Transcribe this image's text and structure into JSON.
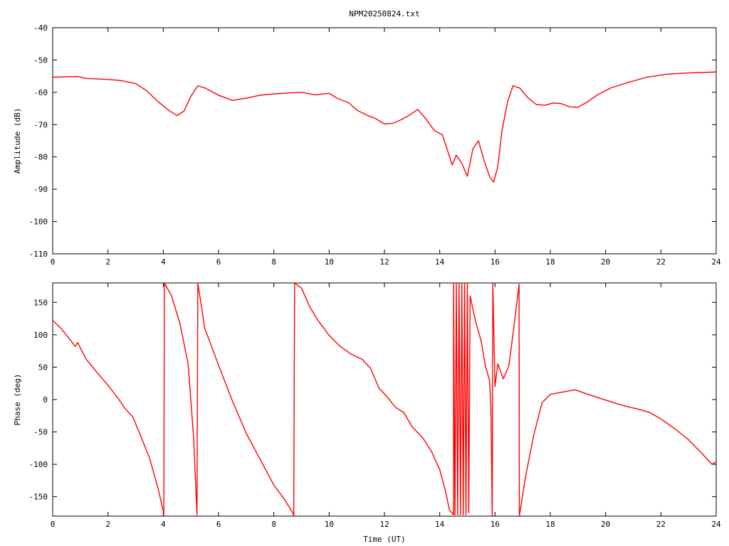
{
  "chart_data": [
    {
      "type": "line",
      "title": "NPM20250824.txt",
      "xlabel": "",
      "ylabel": "Amplitude (dB)",
      "xlim": [
        0,
        24
      ],
      "ylim": [
        -110,
        -40
      ],
      "xticks": [
        "0",
        "2",
        "4",
        "6",
        "8",
        "10",
        "12",
        "14",
        "16",
        "18",
        "20",
        "22",
        "24"
      ],
      "yticks": [
        "-40",
        "-50",
        "-60",
        "-70",
        "-80",
        "-90",
        "-100",
        "-110"
      ],
      "grid": false,
      "line_color": "#ff0000",
      "series": [
        {
          "points": [
            [
              0.0,
              -55.3
            ],
            [
              0.5,
              -55.2
            ],
            [
              0.9,
              -55.1
            ],
            [
              1.2,
              -55.7
            ],
            [
              1.5,
              -55.8
            ],
            [
              2.0,
              -56.0
            ],
            [
              2.5,
              -56.4
            ],
            [
              3.0,
              -57.3
            ],
            [
              3.4,
              -59.5
            ],
            [
              3.8,
              -62.8
            ],
            [
              4.2,
              -65.6
            ],
            [
              4.5,
              -67.2
            ],
            [
              4.75,
              -65.8
            ],
            [
              5.0,
              -61.2
            ],
            [
              5.25,
              -58.0
            ],
            [
              5.5,
              -58.6
            ],
            [
              6.0,
              -60.9
            ],
            [
              6.5,
              -62.5
            ],
            [
              7.0,
              -61.8
            ],
            [
              7.5,
              -60.9
            ],
            [
              8.0,
              -60.5
            ],
            [
              8.5,
              -60.2
            ],
            [
              9.0,
              -60.0
            ],
            [
              9.5,
              -60.8
            ],
            [
              10.0,
              -60.3
            ],
            [
              10.3,
              -61.9
            ],
            [
              10.7,
              -63.2
            ],
            [
              11.0,
              -65.5
            ],
            [
              11.4,
              -67.2
            ],
            [
              11.7,
              -68.2
            ],
            [
              12.0,
              -69.8
            ],
            [
              12.3,
              -69.6
            ],
            [
              12.6,
              -68.5
            ],
            [
              12.9,
              -67.1
            ],
            [
              13.2,
              -65.3
            ],
            [
              13.5,
              -68.2
            ],
            [
              13.8,
              -71.8
            ],
            [
              14.1,
              -73.2
            ],
            [
              14.3,
              -78.5
            ],
            [
              14.45,
              -82.5
            ],
            [
              14.6,
              -79.5
            ],
            [
              14.8,
              -82.0
            ],
            [
              15.0,
              -86.0
            ],
            [
              15.2,
              -77.5
            ],
            [
              15.4,
              -75.0
            ],
            [
              15.6,
              -81.0
            ],
            [
              15.8,
              -86.0
            ],
            [
              15.95,
              -87.8
            ],
            [
              16.1,
              -83.0
            ],
            [
              16.25,
              -72.0
            ],
            [
              16.45,
              -63.0
            ],
            [
              16.65,
              -58.0
            ],
            [
              16.9,
              -58.7
            ],
            [
              17.2,
              -61.8
            ],
            [
              17.5,
              -63.8
            ],
            [
              17.8,
              -64.0
            ],
            [
              18.1,
              -63.3
            ],
            [
              18.4,
              -63.5
            ],
            [
              18.7,
              -64.5
            ],
            [
              19.0,
              -64.6
            ],
            [
              19.3,
              -63.2
            ],
            [
              19.7,
              -60.8
            ],
            [
              20.2,
              -58.6
            ],
            [
              20.8,
              -57.0
            ],
            [
              21.5,
              -55.3
            ],
            [
              22.2,
              -54.4
            ],
            [
              23.0,
              -54.0
            ],
            [
              24.0,
              -53.7
            ]
          ]
        }
      ]
    },
    {
      "type": "line",
      "title": "",
      "xlabel": "Time (UT)",
      "ylabel": "Phase (deg)",
      "xlim": [
        0,
        24
      ],
      "ylim": [
        -180,
        180
      ],
      "xticks": [
        "0",
        "2",
        "4",
        "6",
        "8",
        "10",
        "12",
        "14",
        "16",
        "18",
        "20",
        "22",
        "24"
      ],
      "yticks": [
        "150",
        "100",
        "50",
        "0",
        "-50",
        "-100",
        "-150"
      ],
      "grid": false,
      "line_color": "#ff0000",
      "series": [
        {
          "points": [
            [
              0.0,
              122
            ],
            [
              0.3,
              110
            ],
            [
              0.6,
              94
            ],
            [
              0.82,
              82
            ],
            [
              0.9,
              88
            ],
            [
              1.2,
              63
            ],
            [
              1.6,
              42
            ],
            [
              2.0,
              22
            ],
            [
              2.4,
              0
            ],
            [
              2.6,
              -13
            ],
            [
              2.9,
              -27
            ],
            [
              3.2,
              -58
            ],
            [
              3.5,
              -90
            ],
            [
              3.8,
              -135
            ],
            [
              4.0,
              -172
            ],
            [
              4.02,
              -178
            ],
            [
              4.04,
              180
            ],
            [
              4.3,
              160
            ],
            [
              4.6,
              118
            ],
            [
              4.9,
              55
            ],
            [
              5.1,
              -60
            ],
            [
              5.22,
              -178
            ],
            [
              5.25,
              180
            ],
            [
              5.5,
              110
            ],
            [
              6.0,
              53
            ],
            [
              6.5,
              -2
            ],
            [
              7.0,
              -52
            ],
            [
              7.5,
              -92
            ],
            [
              8.0,
              -132
            ],
            [
              8.4,
              -155
            ],
            [
              8.7,
              -176
            ],
            [
              8.72,
              -180
            ],
            [
              8.75,
              180
            ],
            [
              9.0,
              172
            ],
            [
              9.3,
              143
            ],
            [
              9.6,
              122
            ],
            [
              10.0,
              99
            ],
            [
              10.4,
              82
            ],
            [
              10.8,
              70
            ],
            [
              11.2,
              62
            ],
            [
              11.5,
              48
            ],
            [
              11.8,
              18
            ],
            [
              12.1,
              4
            ],
            [
              12.4,
              -12
            ],
            [
              12.7,
              -20
            ],
            [
              13.0,
              -42
            ],
            [
              13.4,
              -60
            ],
            [
              13.7,
              -80
            ],
            [
              14.0,
              -108
            ],
            [
              14.2,
              -140
            ],
            [
              14.35,
              -170
            ],
            [
              14.5,
              -178
            ],
            [
              14.5,
              180
            ],
            [
              14.55,
              -178
            ],
            [
              14.6,
              180
            ],
            [
              14.65,
              -178
            ],
            [
              14.7,
              180
            ],
            [
              14.75,
              -178
            ],
            [
              14.8,
              180
            ],
            [
              14.85,
              -178
            ],
            [
              14.9,
              180
            ],
            [
              14.95,
              -178
            ],
            [
              15.0,
              180
            ],
            [
              15.05,
              -175
            ],
            [
              15.1,
              160
            ],
            [
              15.3,
              120
            ],
            [
              15.5,
              90
            ],
            [
              15.65,
              52
            ],
            [
              15.8,
              30
            ],
            [
              15.85,
              -10
            ],
            [
              15.9,
              -180
            ],
            [
              15.92,
              180
            ],
            [
              16.0,
              20
            ],
            [
              16.1,
              55
            ],
            [
              16.3,
              32
            ],
            [
              16.5,
              52
            ],
            [
              16.7,
              118
            ],
            [
              16.87,
              178
            ],
            [
              16.88,
              -180
            ],
            [
              17.1,
              -120
            ],
            [
              17.4,
              -55
            ],
            [
              17.7,
              -5
            ],
            [
              18.0,
              8
            ],
            [
              18.5,
              12
            ],
            [
              18.9,
              15
            ],
            [
              19.3,
              9
            ],
            [
              19.8,
              2
            ],
            [
              20.3,
              -5
            ],
            [
              20.8,
              -11
            ],
            [
              21.2,
              -15
            ],
            [
              21.6,
              -20
            ],
            [
              22.0,
              -30
            ],
            [
              22.5,
              -45
            ],
            [
              23.0,
              -62
            ],
            [
              23.5,
              -84
            ],
            [
              23.85,
              -100
            ],
            [
              24.0,
              -96
            ]
          ]
        }
      ]
    }
  ]
}
